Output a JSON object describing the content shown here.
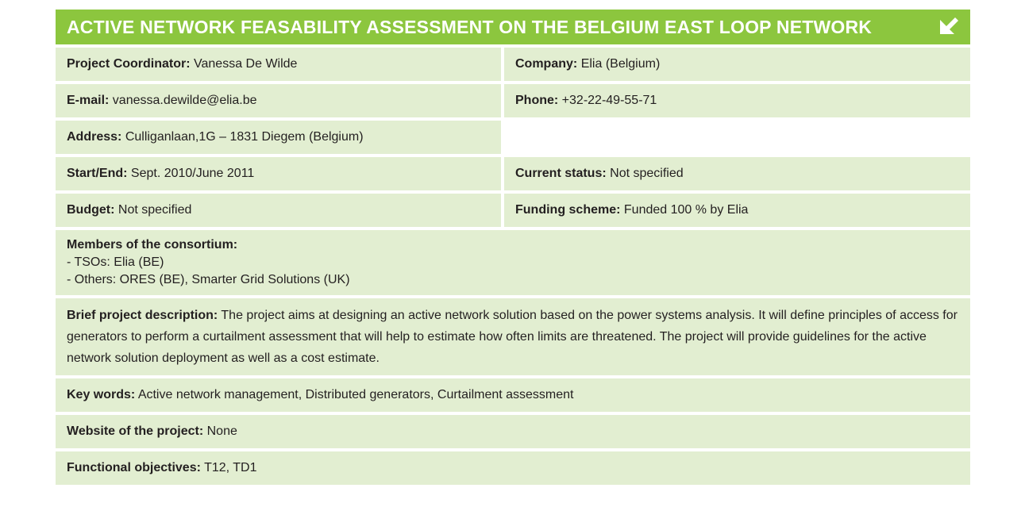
{
  "header": {
    "title": "ACTIVE NETWORK FEASABILITY ASSESSMENT ON THE BELGIUM EAST LOOP NETWORK"
  },
  "fields": {
    "coordinator": {
      "label": "Project Coordinator:",
      "value": "Vanessa De Wilde"
    },
    "company": {
      "label": "Company:",
      "value": "Elia (Belgium)"
    },
    "email": {
      "label": "E-mail:",
      "value": "vanessa.dewilde@elia.be"
    },
    "phone": {
      "label": "Phone:",
      "value": "+32-22-49-55-71"
    },
    "address": {
      "label": "Address:",
      "value": "Culliganlaan,1G – 1831 Diegem (Belgium)"
    },
    "start_end": {
      "label": "Start/End:",
      "value": "Sept. 2010/June 2011"
    },
    "status": {
      "label": "Current status:",
      "value": "Not specified"
    },
    "budget": {
      "label": "Budget:",
      "value": "Not specified"
    },
    "funding": {
      "label": "Funding scheme:",
      "value": "Funded 100 % by Elia"
    },
    "members": {
      "label": "Members of the consortium:",
      "lines": [
        "- TSOs: Elia (BE)",
        "- Others: ORES (BE), Smarter Grid Solutions (UK)"
      ]
    },
    "description": {
      "label": "Brief project description:",
      "value": "The project aims at designing an active network solution based on the power systems analysis. It will define principles of access for generators to perform a curtailment assessment that will help to estimate how often limits are threatened. The project will provide guidelines for the active network solution deployment as well as a cost estimate."
    },
    "keywords": {
      "label": "Key words:",
      "value": "Active network management, Distributed generators, Curtailment assessment"
    },
    "website": {
      "label": "Website of the project:",
      "value": "None"
    },
    "objectives": {
      "label": "Functional objectives:",
      "value": "T12, TD1"
    }
  }
}
